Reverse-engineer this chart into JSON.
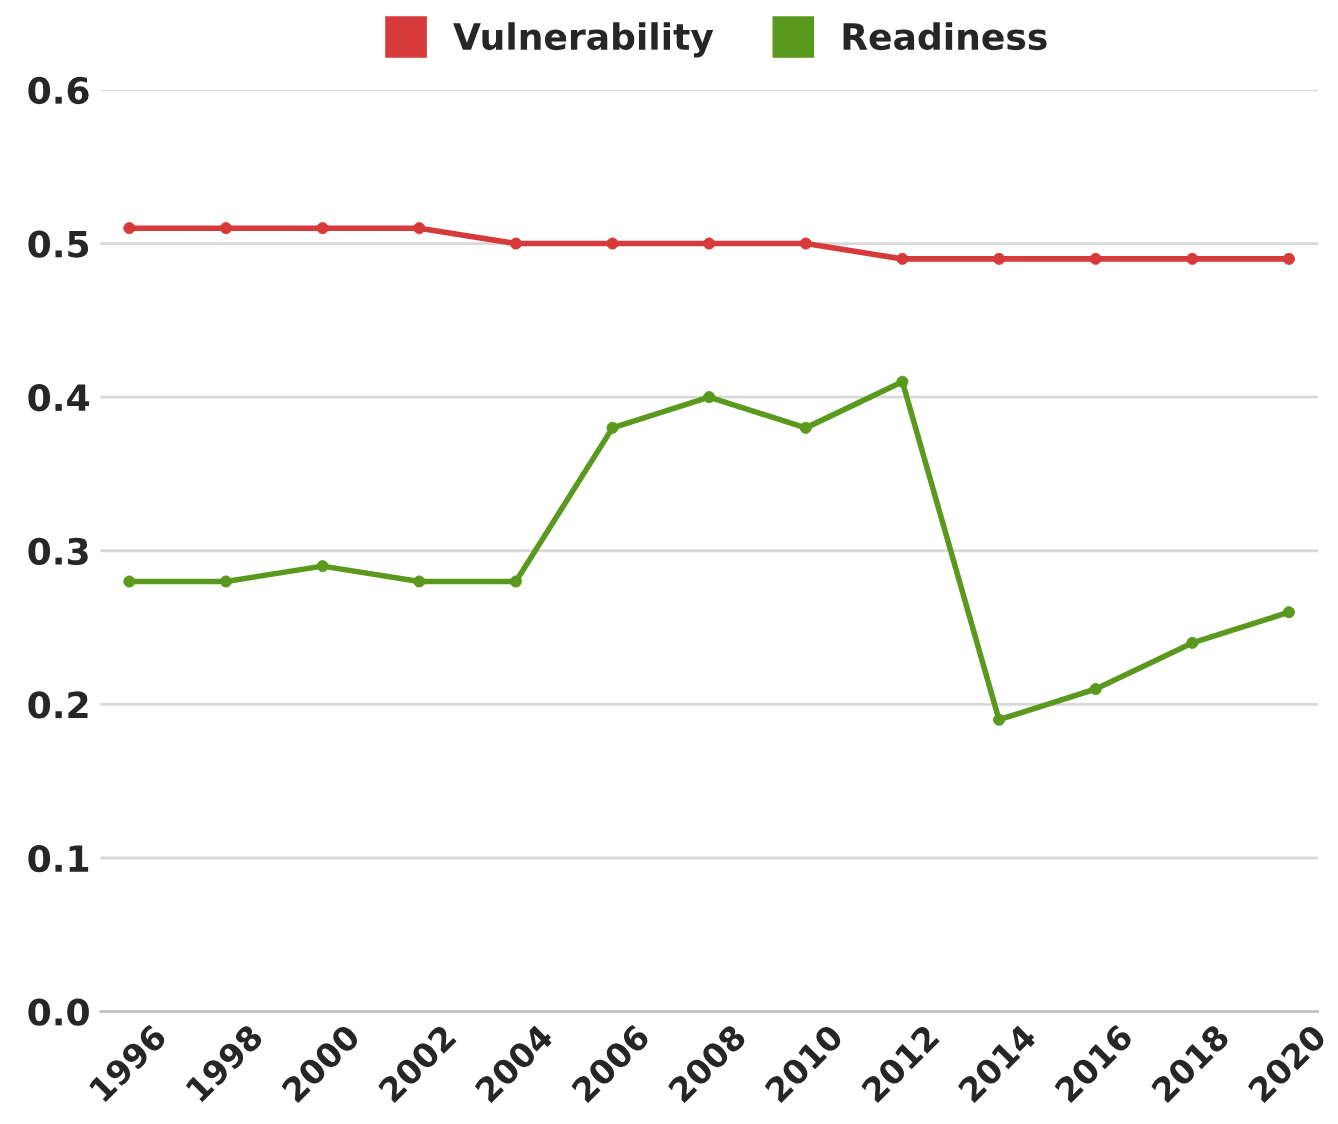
{
  "chart_data": {
    "type": "line",
    "categories": [
      "1996",
      "1998",
      "2000",
      "2002",
      "2004",
      "2006",
      "2008",
      "2010",
      "2012",
      "2014",
      "2016",
      "2018",
      "2020"
    ],
    "series": [
      {
        "name": "Vulnerability",
        "color": "#d63a3a",
        "values": [
          0.51,
          0.51,
          0.51,
          0.51,
          0.5,
          0.5,
          0.5,
          0.5,
          0.49,
          0.49,
          0.49,
          0.49,
          0.49
        ]
      },
      {
        "name": "Readiness",
        "color": "#5a991e",
        "values": [
          0.28,
          0.28,
          0.29,
          0.28,
          0.28,
          0.38,
          0.4,
          0.38,
          0.41,
          0.19,
          0.21,
          0.24,
          0.26
        ]
      }
    ],
    "ylim": [
      0,
      0.6
    ],
    "yticks": [
      {
        "value": 0,
        "label": "0.0"
      },
      {
        "value": 0.1,
        "label": "0.1"
      },
      {
        "value": 0.2,
        "label": "0.2"
      },
      {
        "value": 0.3,
        "label": "0.3"
      },
      {
        "value": 0.4,
        "label": "0.4"
      },
      {
        "value": 0.5,
        "label": "0.5"
      },
      {
        "value": 0.6,
        "label": "0.6"
      }
    ],
    "grid": "y",
    "legend": "top",
    "marker": "circle",
    "line_style": "solid"
  }
}
